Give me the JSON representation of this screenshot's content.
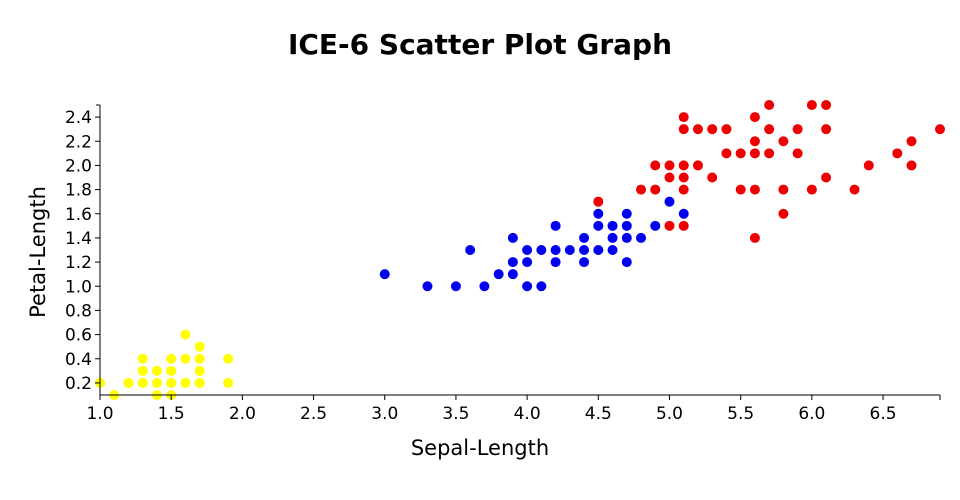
{
  "chart_data": {
    "type": "scatter",
    "title": "ICE-6 Scatter Plot Graph",
    "xlabel": "Sepal-Length",
    "ylabel": "Petal-Length",
    "xlim": [
      1.0,
      6.9
    ],
    "ylim": [
      0.1,
      2.5
    ],
    "x_ticks": [
      "1.0",
      "1.5",
      "2.0",
      "2.5",
      "3.0",
      "3.5",
      "4.0",
      "4.5",
      "5.0",
      "5.5",
      "6.0",
      "6.5"
    ],
    "y_ticks": [
      "0.2",
      "0.4",
      "0.6",
      "0.8",
      "1.0",
      "1.2",
      "1.4",
      "1.6",
      "1.8",
      "2.0",
      "2.2",
      "2.4"
    ],
    "grid": false,
    "legend": "none",
    "series": [
      {
        "color": "#ffff00",
        "points": [
          [
            1.0,
            0.2
          ],
          [
            1.1,
            0.1
          ],
          [
            1.2,
            0.2
          ],
          [
            1.3,
            0.4
          ],
          [
            1.3,
            0.3
          ],
          [
            1.3,
            0.2
          ],
          [
            1.4,
            0.3
          ],
          [
            1.4,
            0.2
          ],
          [
            1.4,
            0.1
          ],
          [
            1.5,
            0.4
          ],
          [
            1.5,
            0.3
          ],
          [
            1.5,
            0.2
          ],
          [
            1.5,
            0.1
          ],
          [
            1.6,
            0.6
          ],
          [
            1.6,
            0.4
          ],
          [
            1.6,
            0.2
          ],
          [
            1.7,
            0.5
          ],
          [
            1.7,
            0.4
          ],
          [
            1.7,
            0.3
          ],
          [
            1.7,
            0.2
          ],
          [
            1.9,
            0.4
          ],
          [
            1.9,
            0.2
          ]
        ]
      },
      {
        "color": "#0000ee",
        "points": [
          [
            3.0,
            1.1
          ],
          [
            3.3,
            1.0
          ],
          [
            3.5,
            1.0
          ],
          [
            3.6,
            1.3
          ],
          [
            3.7,
            1.0
          ],
          [
            3.8,
            1.1
          ],
          [
            3.9,
            1.4
          ],
          [
            3.9,
            1.2
          ],
          [
            3.9,
            1.1
          ],
          [
            4.0,
            1.3
          ],
          [
            4.0,
            1.2
          ],
          [
            4.0,
            1.0
          ],
          [
            4.1,
            1.3
          ],
          [
            4.1,
            1.0
          ],
          [
            4.2,
            1.5
          ],
          [
            4.2,
            1.3
          ],
          [
            4.2,
            1.2
          ],
          [
            4.3,
            1.3
          ],
          [
            4.4,
            1.4
          ],
          [
            4.4,
            1.3
          ],
          [
            4.4,
            1.2
          ],
          [
            4.5,
            1.6
          ],
          [
            4.5,
            1.5
          ],
          [
            4.5,
            1.3
          ],
          [
            4.6,
            1.5
          ],
          [
            4.6,
            1.4
          ],
          [
            4.6,
            1.3
          ],
          [
            4.7,
            1.6
          ],
          [
            4.7,
            1.5
          ],
          [
            4.7,
            1.4
          ],
          [
            4.7,
            1.2
          ],
          [
            4.8,
            1.4
          ],
          [
            4.9,
            1.5
          ],
          [
            5.0,
            1.7
          ],
          [
            5.1,
            1.6
          ]
        ]
      },
      {
        "color": "#ee0000",
        "points": [
          [
            4.5,
            1.7
          ],
          [
            4.8,
            1.8
          ],
          [
            4.9,
            2.0
          ],
          [
            4.9,
            1.8
          ],
          [
            5.0,
            2.0
          ],
          [
            5.0,
            1.9
          ],
          [
            5.0,
            1.5
          ],
          [
            5.1,
            2.4
          ],
          [
            5.1,
            2.3
          ],
          [
            5.1,
            2.0
          ],
          [
            5.1,
            1.9
          ],
          [
            5.1,
            1.8
          ],
          [
            5.1,
            1.5
          ],
          [
            5.2,
            2.3
          ],
          [
            5.2,
            2.0
          ],
          [
            5.3,
            2.3
          ],
          [
            5.3,
            1.9
          ],
          [
            5.4,
            2.3
          ],
          [
            5.4,
            2.1
          ],
          [
            5.5,
            2.1
          ],
          [
            5.5,
            1.8
          ],
          [
            5.6,
            2.4
          ],
          [
            5.6,
            2.2
          ],
          [
            5.6,
            2.1
          ],
          [
            5.6,
            1.8
          ],
          [
            5.6,
            1.4
          ],
          [
            5.7,
            2.5
          ],
          [
            5.7,
            2.3
          ],
          [
            5.7,
            2.1
          ],
          [
            5.8,
            2.2
          ],
          [
            5.8,
            1.8
          ],
          [
            5.8,
            1.6
          ],
          [
            5.9,
            2.3
          ],
          [
            5.9,
            2.1
          ],
          [
            6.0,
            2.5
          ],
          [
            6.0,
            1.8
          ],
          [
            6.1,
            2.5
          ],
          [
            6.1,
            2.3
          ],
          [
            6.1,
            1.9
          ],
          [
            6.3,
            1.8
          ],
          [
            6.4,
            2.0
          ],
          [
            6.6,
            2.1
          ],
          [
            6.7,
            2.2
          ],
          [
            6.7,
            2.0
          ],
          [
            6.9,
            2.3
          ]
        ]
      }
    ]
  }
}
